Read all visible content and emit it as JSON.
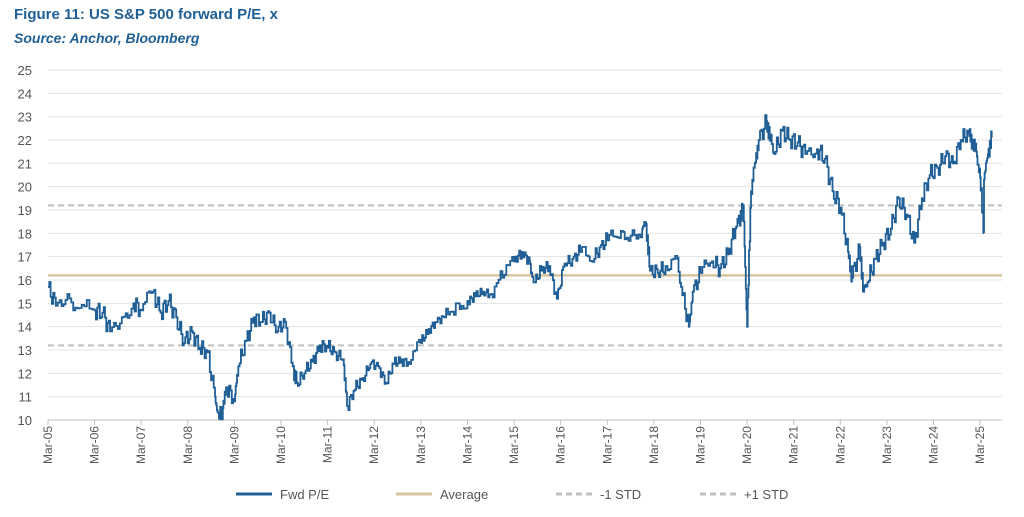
{
  "header": {
    "title": "Figure 11: US S&P 500 forward P/E, x",
    "source": "Source: Anchor, Bloomberg"
  },
  "chart_data": {
    "type": "line",
    "title": "Figure 11: US S&P 500 forward P/E, x",
    "subtitle": "Source: Anchor, Bloomberg",
    "xlabel": "",
    "ylabel": "",
    "ylim": [
      10,
      25
    ],
    "yticks": [
      10,
      11,
      12,
      13,
      14,
      15,
      16,
      17,
      18,
      19,
      20,
      21,
      22,
      23,
      24,
      25
    ],
    "xticks": [
      "Mar-05",
      "Mar-06",
      "Mar-07",
      "Mar-08",
      "Mar-09",
      "Mar-10",
      "Mar-11",
      "Mar-12",
      "Mar-13",
      "Mar-14",
      "Mar-15",
      "Mar-16",
      "Mar-17",
      "Mar-18",
      "Mar-19",
      "Mar-20",
      "Mar-21",
      "Mar-22",
      "Mar-23",
      "Mar-24",
      "Mar-25"
    ],
    "grid": true,
    "legend_position": "bottom",
    "series": [
      {
        "name": "Fwd P/E",
        "color": "#1f5f95",
        "style": "solid",
        "points": [
          [
            "Mar-05",
            15.7
          ],
          [
            "May-05",
            14.9
          ],
          [
            "Aug-05",
            15.4
          ],
          [
            "Nov-05",
            14.8
          ],
          [
            "Mar-06",
            14.7
          ],
          [
            "May-06",
            14.6
          ],
          [
            "Jul-06",
            13.8
          ],
          [
            "Oct-06",
            14.4
          ],
          [
            "Jan-07",
            15.0
          ],
          [
            "Mar-07",
            14.7
          ],
          [
            "Jun-07",
            15.5
          ],
          [
            "Aug-07",
            14.6
          ],
          [
            "Oct-07",
            15.1
          ],
          [
            "Dec-07",
            14.4
          ],
          [
            "Feb-08",
            13.3
          ],
          [
            "Apr-08",
            13.8
          ],
          [
            "Jun-08",
            13.1
          ],
          [
            "Aug-08",
            12.9
          ],
          [
            "Oct-08",
            11.0
          ],
          [
            "Nov-08",
            10.1
          ],
          [
            "Dec-08",
            10.5
          ],
          [
            "Jan-09",
            11.4
          ],
          [
            "Mar-09",
            10.8
          ],
          [
            "Apr-09",
            12.3
          ],
          [
            "Jun-09",
            13.4
          ],
          [
            "Aug-09",
            14.4
          ],
          [
            "Oct-09",
            14.2
          ],
          [
            "Dec-09",
            14.6
          ],
          [
            "Feb-10",
            13.8
          ],
          [
            "Apr-10",
            14.2
          ],
          [
            "Jun-10",
            12.3
          ],
          [
            "Jul-10",
            11.6
          ],
          [
            "Sep-10",
            12.0
          ],
          [
            "Nov-10",
            12.5
          ],
          [
            "Jan-11",
            13.2
          ],
          [
            "Mar-11",
            13.1
          ],
          [
            "May-11",
            12.9
          ],
          [
            "Jul-11",
            12.6
          ],
          [
            "Aug-11",
            10.6
          ],
          [
            "Oct-11",
            11.3
          ],
          [
            "Dec-11",
            11.8
          ],
          [
            "Feb-12",
            12.4
          ],
          [
            "Apr-12",
            12.3
          ],
          [
            "Jun-12",
            11.6
          ],
          [
            "Aug-12",
            12.4
          ],
          [
            "Oct-12",
            12.6
          ],
          [
            "Dec-12",
            12.4
          ],
          [
            "Mar-13",
            13.3
          ],
          [
            "May-13",
            13.9
          ],
          [
            "Jul-13",
            14.2
          ],
          [
            "Sep-13",
            14.4
          ],
          [
            "Dec-13",
            15.0
          ],
          [
            "Mar-14",
            15.1
          ],
          [
            "May-14",
            15.3
          ],
          [
            "Jul-14",
            15.5
          ],
          [
            "Sep-14",
            15.4
          ],
          [
            "Dec-14",
            16.1
          ],
          [
            "Mar-15",
            16.8
          ],
          [
            "May-15",
            17.2
          ],
          [
            "Jul-15",
            16.8
          ],
          [
            "Aug-15",
            15.9
          ],
          [
            "Oct-15",
            16.4
          ],
          [
            "Dec-15",
            16.6
          ],
          [
            "Feb-16",
            15.2
          ],
          [
            "Apr-16",
            16.7
          ],
          [
            "Jun-16",
            16.9
          ],
          [
            "Aug-16",
            17.2
          ],
          [
            "Nov-16",
            16.8
          ],
          [
            "Jan-17",
            17.4
          ],
          [
            "Mar-17",
            17.7
          ],
          [
            "Jun-17",
            17.8
          ],
          [
            "Sep-17",
            17.9
          ],
          [
            "Dec-17",
            18.2
          ],
          [
            "Jan-18",
            18.4
          ],
          [
            "Feb-18",
            16.4
          ],
          [
            "Apr-18",
            16.3
          ],
          [
            "Jun-18",
            16.6
          ],
          [
            "Sep-18",
            16.9
          ],
          [
            "Oct-18",
            15.7
          ],
          [
            "Dec-18",
            14.0
          ],
          [
            "Jan-19",
            15.5
          ],
          [
            "Mar-19",
            16.3
          ],
          [
            "Jun-19",
            16.8
          ],
          [
            "Aug-19",
            16.5
          ],
          [
            "Oct-19",
            17.1
          ],
          [
            "Dec-19",
            18.2
          ],
          [
            "Jan-20",
            18.6
          ],
          [
            "Feb-20",
            19.2
          ],
          [
            "Mar-20",
            14.0
          ],
          [
            "Apr-20",
            19.8
          ],
          [
            "May-20",
            21.0
          ],
          [
            "Jun-20",
            22.0
          ],
          [
            "Aug-20",
            22.8
          ],
          [
            "Sep-20",
            22.1
          ],
          [
            "Oct-20",
            21.4
          ],
          [
            "Dec-20",
            22.4
          ],
          [
            "Feb-21",
            22.0
          ],
          [
            "Apr-21",
            21.9
          ],
          [
            "Jun-21",
            21.4
          ],
          [
            "Sep-21",
            21.6
          ],
          [
            "Nov-21",
            21.2
          ],
          [
            "Jan-22",
            19.8
          ],
          [
            "Mar-22",
            19.1
          ],
          [
            "May-22",
            17.2
          ],
          [
            "Jun-22",
            16.1
          ],
          [
            "Aug-22",
            17.4
          ],
          [
            "Sep-22",
            15.5
          ],
          [
            "Oct-22",
            15.9
          ],
          [
            "Dec-22",
            16.9
          ],
          [
            "Feb-23",
            17.6
          ],
          [
            "Apr-23",
            18.2
          ],
          [
            "Jun-23",
            19.5
          ],
          [
            "Aug-23",
            18.8
          ],
          [
            "Oct-23",
            17.6
          ],
          [
            "Dec-23",
            19.5
          ],
          [
            "Feb-24",
            20.5
          ],
          [
            "Apr-24",
            20.8
          ],
          [
            "Jun-24",
            21.3
          ],
          [
            "Aug-24",
            21.0
          ],
          [
            "Oct-24",
            22.0
          ],
          [
            "Dec-24",
            22.3
          ],
          [
            "Jan-25",
            21.9
          ],
          [
            "Feb-25",
            21.5
          ],
          [
            "Mar-25",
            20.4
          ],
          [
            "Apr-25",
            18.0
          ],
          [
            "Apr-25",
            20.3
          ],
          [
            "May-25",
            21.4
          ],
          [
            "Jun-25",
            22.1
          ]
        ]
      },
      {
        "name": "Average",
        "color": "#d8c4a0",
        "style": "solid",
        "value": 16.2
      },
      {
        "name": "-1 STD",
        "color": "#bfbfbf",
        "style": "dashed",
        "value": 13.2
      },
      {
        "name": "+1 STD",
        "color": "#bfbfbf",
        "style": "dashed",
        "value": 19.2
      }
    ]
  }
}
